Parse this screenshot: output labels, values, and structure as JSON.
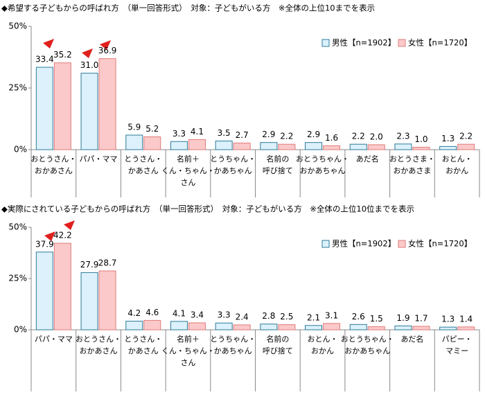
{
  "chart_data": [
    {
      "type": "bar",
      "title": "◆希望する子どもからの呼ばれ方　（単一回答形式）　対象：子どもがいる方　※全体の上位10までを表示",
      "categories": [
        [
          "おとうさん・",
          "おかあさん"
        ],
        [
          "パパ・ママ"
        ],
        [
          "とうさん・",
          "かあさん"
        ],
        [
          "名前＋",
          "くん・ちゃん・",
          "さん"
        ],
        [
          "とうちゃん・",
          "かあちゃん"
        ],
        [
          "名前の",
          "呼び捨て"
        ],
        [
          "おとうちゃん・",
          "おかあちゃん"
        ],
        [
          "あだ名"
        ],
        [
          "おとうさま・",
          "おかあさま"
        ],
        [
          "おとん・",
          "おかん"
        ]
      ],
      "series": [
        {
          "name": "男性【n=1902】",
          "color": "#dcf1fb",
          "values": [
            33.4,
            31.0,
            5.9,
            3.3,
            3.5,
            2.9,
            2.9,
            2.2,
            2.3,
            1.3
          ],
          "value_labels": [
            "33.4",
            "31.0",
            "5.9",
            "3.3",
            "3.5",
            "2.9",
            "2.9",
            "2.2",
            "2.3",
            "1.3"
          ]
        },
        {
          "name": "女性【n=1720】",
          "color": "#fbc9c9",
          "values": [
            35.2,
            36.9,
            5.2,
            4.1,
            2.7,
            2.2,
            1.6,
            2.0,
            1.0,
            2.2
          ],
          "value_labels": [
            "35.2",
            "36.9",
            "5.2",
            "4.1",
            "2.7",
            "2.2",
            "1.6",
            "2.0",
            "1.0",
            "2.2"
          ]
        }
      ],
      "ylim": [
        0,
        50
      ],
      "yticks": [
        {
          "value": 0,
          "label": "0%"
        },
        {
          "value": 25,
          "label": "25%"
        },
        {
          "value": 50,
          "label": "50%"
        }
      ],
      "grid": false
    },
    {
      "type": "bar",
      "title": "◆実際にされている子どもからの呼ばれ方　（単一回答形式）　対象：子どもがいる方　※全体の上位10位までを表示",
      "categories": [
        [
          "パパ・ママ"
        ],
        [
          "おとうさん・",
          "おかあさん"
        ],
        [
          "とうさん・",
          "かあさん"
        ],
        [
          "名前＋",
          "くん・ちゃん・",
          "さん"
        ],
        [
          "とうちゃん・",
          "かあちゃん"
        ],
        [
          "名前の",
          "呼び捨て"
        ],
        [
          "おとん・",
          "おかん"
        ],
        [
          "おとうちゃん・",
          "おかあちゃん"
        ],
        [
          "あだ名"
        ],
        [
          "パピー・",
          "マミー"
        ]
      ],
      "series": [
        {
          "name": "男性【n=1902】",
          "color": "#dcf1fb",
          "values": [
            37.9,
            27.9,
            4.2,
            4.1,
            3.3,
            2.8,
            2.1,
            2.6,
            1.9,
            1.3
          ],
          "value_labels": [
            "37.9",
            "27.9",
            "4.2",
            "4.1",
            "3.3",
            "2.8",
            "2.1",
            "2.6",
            "1.9",
            "1.3"
          ]
        },
        {
          "name": "女性【n=1720】",
          "color": "#fbc9c9",
          "values": [
            42.2,
            28.7,
            4.6,
            3.4,
            2.4,
            2.5,
            3.1,
            1.5,
            1.7,
            1.4
          ],
          "value_labels": [
            "42.2",
            "28.7",
            "4.6",
            "3.4",
            "2.4",
            "2.5",
            "3.1",
            "1.5",
            "1.7",
            "1.4"
          ]
        }
      ],
      "ylim": [
        0,
        50
      ],
      "yticks": [
        {
          "value": 0,
          "label": "0%"
        },
        {
          "value": 25,
          "label": "25%"
        },
        {
          "value": 50,
          "label": "50%"
        }
      ],
      "grid": false
    }
  ]
}
